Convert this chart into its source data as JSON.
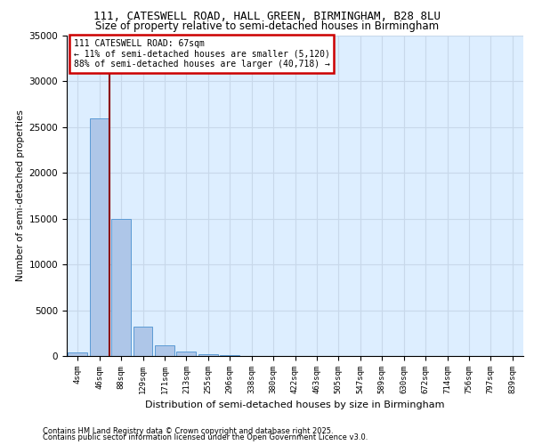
{
  "title1": "111, CATESWELL ROAD, HALL GREEN, BIRMINGHAM, B28 8LU",
  "title2": "Size of property relative to semi-detached houses in Birmingham",
  "xlabel": "Distribution of semi-detached houses by size in Birmingham",
  "ylabel": "Number of semi-detached properties",
  "categories": [
    "4sqm",
    "46sqm",
    "88sqm",
    "129sqm",
    "171sqm",
    "213sqm",
    "255sqm",
    "296sqm",
    "338sqm",
    "380sqm",
    "422sqm",
    "463sqm",
    "505sqm",
    "547sqm",
    "589sqm",
    "630sqm",
    "672sqm",
    "714sqm",
    "756sqm",
    "797sqm",
    "839sqm"
  ],
  "values": [
    350,
    26000,
    15000,
    3200,
    1200,
    450,
    200,
    100,
    0,
    0,
    0,
    0,
    0,
    0,
    0,
    0,
    0,
    0,
    0,
    0,
    0
  ],
  "bar_color": "#aec6e8",
  "bar_edge_color": "#5b9bd5",
  "vline_x": 1.45,
  "vline_color": "#8b0000",
  "annotation_title": "111 CATESWELL ROAD: 67sqm",
  "annotation_line1": "← 11% of semi-detached houses are smaller (5,120)",
  "annotation_line2": "88% of semi-detached houses are larger (40,718) →",
  "annotation_box_color": "#cc0000",
  "annotation_bg": "white",
  "ylim": [
    0,
    35000
  ],
  "yticks": [
    0,
    5000,
    10000,
    15000,
    20000,
    25000,
    30000,
    35000
  ],
  "footer1": "Contains HM Land Registry data © Crown copyright and database right 2025.",
  "footer2": "Contains public sector information licensed under the Open Government Licence v3.0.",
  "bg_color": "#ddeeff",
  "fig_bg_color": "#ffffff",
  "grid_color": "#c8d8ea"
}
